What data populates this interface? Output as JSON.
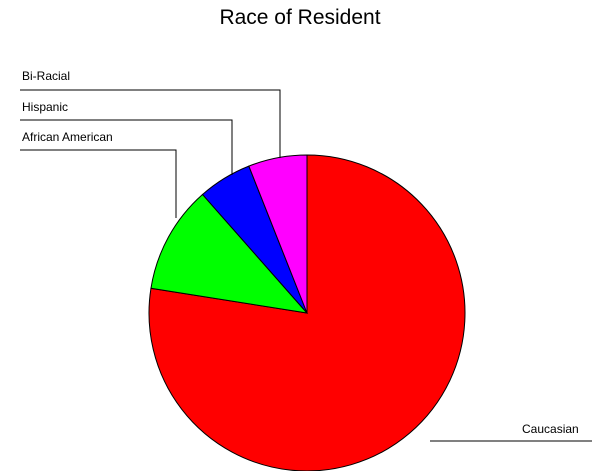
{
  "chart_data": {
    "type": "pie",
    "title": "Race of Resident",
    "slices": [
      {
        "label": "Caucasian",
        "value": 77.5,
        "color": "#ff0000"
      },
      {
        "label": "African American",
        "value": 11.0,
        "color": "#00ff00"
      },
      {
        "label": "Hispanic",
        "value": 5.5,
        "color": "#0000ff"
      },
      {
        "label": "Bi-Racial",
        "value": 6.0,
        "color": "#ff00ff"
      }
    ],
    "start": "top",
    "direction": "clockwise",
    "legend": "none"
  }
}
